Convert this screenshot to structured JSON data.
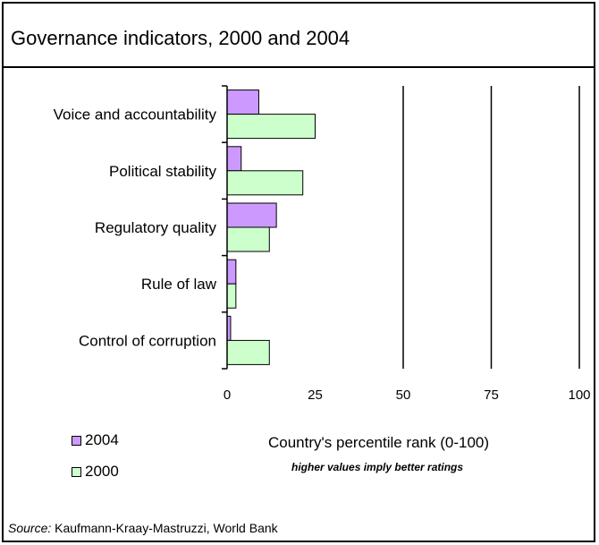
{
  "colors": {
    "series_2004": "#cc99ff",
    "series_2000": "#ccffcc"
  },
  "chart_data": {
    "type": "bar",
    "orientation": "horizontal",
    "title": "Governance indicators, 2000 and 2004",
    "categories": [
      "Voice and accountability",
      "Political stability",
      "Regulatory quality",
      "Rule of law",
      "Control of corruption"
    ],
    "series": [
      {
        "name": "2004",
        "values": [
          9,
          4,
          14,
          2.5,
          1
        ]
      },
      {
        "name": "2000",
        "values": [
          25,
          21.5,
          12,
          2.5,
          12
        ]
      }
    ],
    "xlabel": "Country's percentile rank (0-100)",
    "xnote": "higher values imply better ratings",
    "xlim": [
      0,
      100
    ],
    "xticks": [
      "0",
      "25",
      "50",
      "75",
      "100"
    ],
    "grid": "vertical lines at 50, 75, 100",
    "legend_position": "bottom-left"
  },
  "source": {
    "label": "Source:",
    "text": "Kaufmann-Kraay-Mastruzzi, World Bank"
  }
}
